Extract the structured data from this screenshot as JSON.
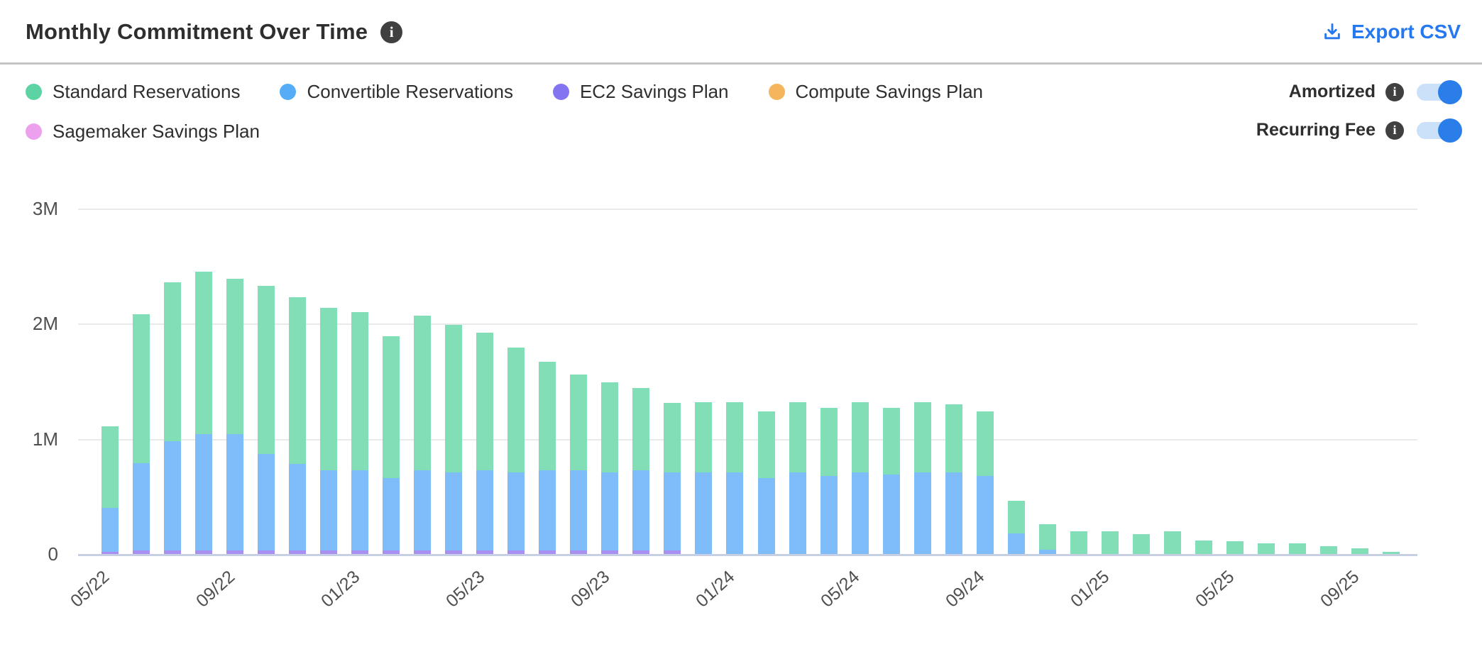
{
  "header": {
    "title": "Monthly Commitment Over Time",
    "export_label": "Export CSV"
  },
  "toggles": [
    {
      "label": "Amortized",
      "state": "on"
    },
    {
      "label": "Recurring Fee",
      "state": "on"
    }
  ],
  "colors": {
    "export_blue": "#2578f0",
    "toggle_knob": "#2b7de9",
    "toggle_track": "#cbe1fa",
    "info_badge": "#404040",
    "gridline": "#e9e9e9",
    "axis_line": "#c7cfe3",
    "axis_text": "#4f4f4f",
    "divider": "#c4c4c4"
  },
  "chart_data": {
    "type": "bar",
    "stacked": true,
    "title": "Monthly Commitment Over Time",
    "xlabel": "",
    "ylabel": "",
    "unit": "M (USD)",
    "ylim": [
      0,
      3
    ],
    "grid": true,
    "legend_position": "top-left",
    "y_ticks": [
      "3M",
      "2M",
      "1M",
      "0"
    ],
    "y_tick_values": [
      3,
      2,
      1,
      0
    ],
    "x_tick_every": 4,
    "x_tick_labels": [
      "05/22",
      "09/22",
      "01/23",
      "05/23",
      "09/23",
      "01/24",
      "05/24",
      "09/24",
      "01/25",
      "05/25",
      "09/25"
    ],
    "categories": [
      "05/22",
      "06/22",
      "07/22",
      "08/22",
      "09/22",
      "10/22",
      "11/22",
      "12/22",
      "01/23",
      "02/23",
      "03/23",
      "04/23",
      "05/23",
      "06/23",
      "07/23",
      "08/23",
      "09/23",
      "10/23",
      "11/23",
      "12/23",
      "01/24",
      "02/24",
      "03/24",
      "04/24",
      "05/24",
      "06/24",
      "07/24",
      "08/24",
      "09/24",
      "10/24",
      "11/24",
      "12/24",
      "01/25",
      "02/25",
      "03/25",
      "04/25",
      "05/25",
      "06/25",
      "07/25",
      "08/25",
      "09/25",
      "10/25"
    ],
    "series": [
      {
        "name": "Standard Reservations",
        "color": "#5cd3a2",
        "bar_color": "#81deb6",
        "values": [
          0.71,
          1.29,
          1.38,
          1.41,
          1.35,
          1.46,
          1.45,
          1.41,
          1.37,
          1.23,
          1.34,
          1.28,
          1.19,
          1.08,
          0.94,
          0.83,
          0.78,
          0.71,
          0.6,
          0.61,
          0.61,
          0.58,
          0.61,
          0.59,
          0.61,
          0.58,
          0.61,
          0.59,
          0.56,
          0.28,
          0.22,
          0.2,
          0.2,
          0.17,
          0.2,
          0.12,
          0.11,
          0.09,
          0.09,
          0.07,
          0.05,
          0.02
        ]
      },
      {
        "name": "Convertible Reservations",
        "color": "#54adf6",
        "bar_color": "#7fbdfa",
        "values": [
          0.38,
          0.76,
          0.95,
          1.01,
          1.01,
          0.84,
          0.75,
          0.7,
          0.7,
          0.63,
          0.7,
          0.68,
          0.7,
          0.68,
          0.7,
          0.7,
          0.68,
          0.7,
          0.68,
          0.71,
          0.71,
          0.66,
          0.71,
          0.68,
          0.71,
          0.69,
          0.71,
          0.71,
          0.68,
          0.18,
          0.04,
          0,
          0,
          0,
          0,
          0,
          0,
          0,
          0,
          0,
          0,
          0
        ]
      },
      {
        "name": "EC2 Savings Plan",
        "color": "#8374f2",
        "bar_color": "#a98ff2",
        "values": [
          0.02,
          0.03,
          0.03,
          0.03,
          0.03,
          0.03,
          0.03,
          0.03,
          0.03,
          0.03,
          0.03,
          0.03,
          0.03,
          0.03,
          0.03,
          0.03,
          0.03,
          0.03,
          0.03,
          0,
          0,
          0,
          0,
          0,
          0,
          0,
          0,
          0,
          0,
          0,
          0,
          0,
          0,
          0,
          0,
          0,
          0,
          0,
          0,
          0,
          0,
          0
        ]
      },
      {
        "name": "Compute Savings Plan",
        "color": "#f4b55c",
        "bar_color": "#f4b55c",
        "values": [
          0,
          0,
          0,
          0,
          0,
          0,
          0,
          0,
          0,
          0,
          0,
          0,
          0,
          0,
          0,
          0,
          0,
          0,
          0,
          0,
          0,
          0,
          0,
          0,
          0,
          0,
          0,
          0,
          0,
          0,
          0,
          0,
          0,
          0,
          0,
          0,
          0,
          0,
          0,
          0,
          0,
          0
        ]
      },
      {
        "name": "Sagemaker Savings Plan",
        "color": "#eda0ed",
        "bar_color": "#eda0ed",
        "values": [
          0,
          0,
          0,
          0,
          0,
          0,
          0,
          0,
          0,
          0,
          0,
          0,
          0,
          0,
          0,
          0,
          0,
          0,
          0,
          0,
          0,
          0,
          0,
          0,
          0,
          0,
          0,
          0,
          0,
          0,
          0,
          0,
          0,
          0,
          0,
          0,
          0,
          0,
          0,
          0,
          0,
          0
        ]
      }
    ]
  }
}
